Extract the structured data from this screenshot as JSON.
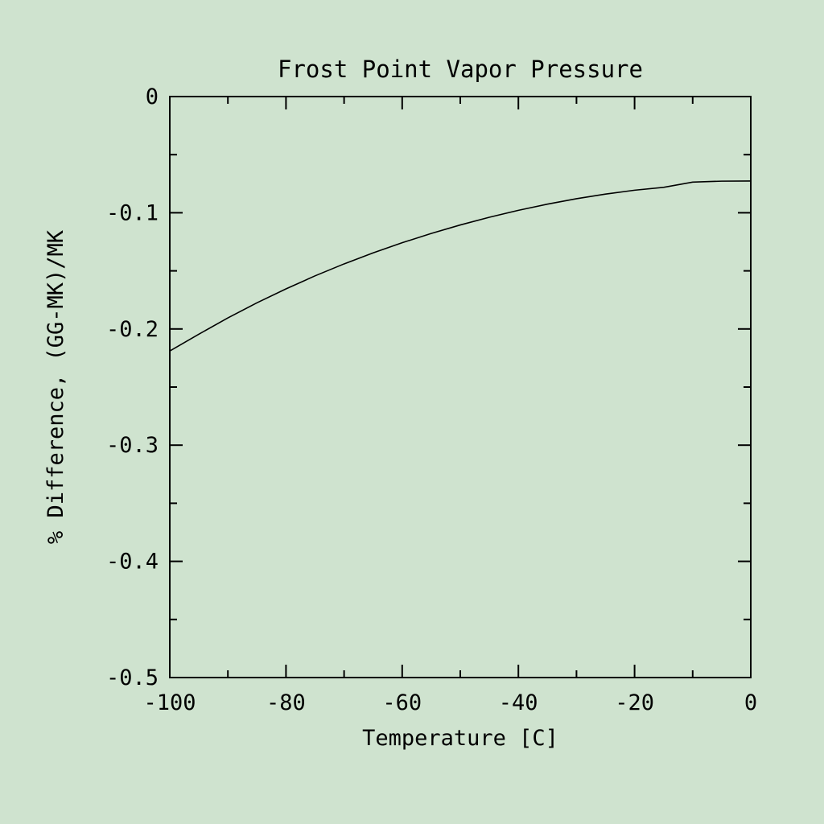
{
  "chart_data": {
    "type": "line",
    "title": "Frost Point Vapor Pressure",
    "xlabel": "Temperature [C]",
    "ylabel": "% Difference, (GG-MK)/MK",
    "xlim": [
      -100,
      0
    ],
    "ylim": [
      -0.5,
      0
    ],
    "x_ticks": [
      "-100",
      "-80",
      "-60",
      "-40",
      "-20",
      "0"
    ],
    "y_ticks": [
      "0",
      "-0.1",
      "-0.2",
      "-0.3",
      "-0.4",
      "-0.5"
    ],
    "grid": false,
    "series": [
      {
        "x": [
          -100,
          -95,
          -90,
          -85,
          -80,
          -75,
          -70,
          -65,
          -60,
          -55,
          -50,
          -45,
          -40,
          -35,
          -30,
          -25,
          -20,
          -15,
          -10,
          -5,
          0
        ],
        "y": [
          -0.219,
          -0.2045,
          -0.1905,
          -0.1775,
          -0.1655,
          -0.1543,
          -0.144,
          -0.1345,
          -0.1258,
          -0.1178,
          -0.1105,
          -0.1039,
          -0.0979,
          -0.0926,
          -0.0879,
          -0.0839,
          -0.0806,
          -0.0781,
          -0.0736,
          -0.0728,
          -0.0727
        ]
      }
    ]
  }
}
